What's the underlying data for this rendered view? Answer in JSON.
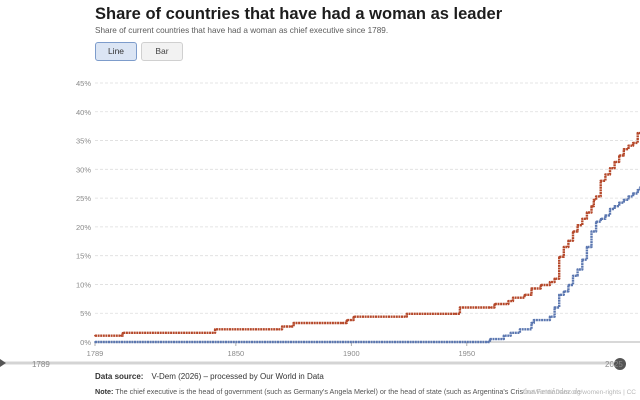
{
  "header": {
    "title": "Share of countries that have had a woman as leader",
    "subtitle": "Share of current countries that have had a woman as chief executive since 1789."
  },
  "tabs": [
    {
      "label": "Line",
      "active": true
    },
    {
      "label": "Bar",
      "active": false
    }
  ],
  "timeline": {
    "start_label": "1789",
    "end_label": "2025"
  },
  "footer": {
    "source_label": "Data source:",
    "source_text": "V-Dem (2026) – processed by Our World in Data",
    "note_label": "Note:",
    "note_text": "The chief executive is the head of government (such as Germany's Angela Merkel) or the head of state (such as Argentina's Cristina Fernández de",
    "watermark": "OurWorldinData.org/women-rights | CC"
  },
  "colors": {
    "series_head_of_any": "#b5482a",
    "series_head_of_government": "#5b77b0",
    "grid": "#dddddd",
    "axis_text": "#8a8a8a"
  },
  "chart_data": {
    "type": "line",
    "title": "Share of countries that have had a woman as leader",
    "xlim": [
      1789,
      2025
    ],
    "ylim": [
      0,
      45
    ],
    "yticks": [
      0,
      5,
      10,
      15,
      20,
      25,
      30,
      35,
      40,
      45
    ],
    "ytick_suffix": "%",
    "xticks": [
      1789,
      1850,
      1900,
      1950
    ],
    "grid": true,
    "series": [
      {
        "color": "#b5482a",
        "points": [
          [
            1789,
            1.1
          ],
          [
            1800,
            1.1
          ],
          [
            1801,
            1.6
          ],
          [
            1840,
            1.6
          ],
          [
            1841,
            2.2
          ],
          [
            1868,
            2.2
          ],
          [
            1870,
            2.7
          ],
          [
            1874,
            2.7
          ],
          [
            1875,
            3.3
          ],
          [
            1896,
            3.3
          ],
          [
            1898,
            3.8
          ],
          [
            1900,
            3.8
          ],
          [
            1901,
            4.4
          ],
          [
            1922,
            4.4
          ],
          [
            1924,
            4.9
          ],
          [
            1945,
            4.9
          ],
          [
            1947,
            6.0
          ],
          [
            1960,
            6.0
          ],
          [
            1962,
            6.6
          ],
          [
            1966,
            6.6
          ],
          [
            1968,
            7.1
          ],
          [
            1970,
            7.7
          ],
          [
            1975,
            8.2
          ],
          [
            1978,
            9.3
          ],
          [
            1982,
            9.9
          ],
          [
            1986,
            10.4
          ],
          [
            1988,
            11.0
          ],
          [
            1990,
            14.8
          ],
          [
            1992,
            16.5
          ],
          [
            1994,
            17.6
          ],
          [
            1996,
            19.2
          ],
          [
            1998,
            20.3
          ],
          [
            2000,
            21.4
          ],
          [
            2002,
            22.5
          ],
          [
            2004,
            23.6
          ],
          [
            2005,
            24.7
          ],
          [
            2006,
            25.3
          ],
          [
            2008,
            28.0
          ],
          [
            2010,
            29.1
          ],
          [
            2012,
            30.2
          ],
          [
            2014,
            31.3
          ],
          [
            2016,
            32.4
          ],
          [
            2018,
            33.5
          ],
          [
            2020,
            34.1
          ],
          [
            2022,
            34.6
          ],
          [
            2024,
            36.3
          ],
          [
            2025,
            36.3
          ]
        ]
      },
      {
        "color": "#5b77b0",
        "points": [
          [
            1789,
            0
          ],
          [
            1959,
            0
          ],
          [
            1960,
            0.5
          ],
          [
            1965,
            0.5
          ],
          [
            1966,
            1.1
          ],
          [
            1969,
            1.6
          ],
          [
            1973,
            2.2
          ],
          [
            1978,
            3.3
          ],
          [
            1979,
            3.8
          ],
          [
            1986,
            4.4
          ],
          [
            1988,
            6.0
          ],
          [
            1990,
            8.2
          ],
          [
            1992,
            8.8
          ],
          [
            1994,
            9.9
          ],
          [
            1996,
            11.5
          ],
          [
            1998,
            12.6
          ],
          [
            2000,
            14.3
          ],
          [
            2002,
            16.5
          ],
          [
            2004,
            19.2
          ],
          [
            2006,
            20.9
          ],
          [
            2008,
            21.4
          ],
          [
            2010,
            22.0
          ],
          [
            2012,
            23.1
          ],
          [
            2014,
            23.6
          ],
          [
            2016,
            24.2
          ],
          [
            2018,
            24.7
          ],
          [
            2020,
            25.3
          ],
          [
            2022,
            25.8
          ],
          [
            2024,
            26.4
          ],
          [
            2025,
            26.9
          ]
        ]
      }
    ]
  }
}
